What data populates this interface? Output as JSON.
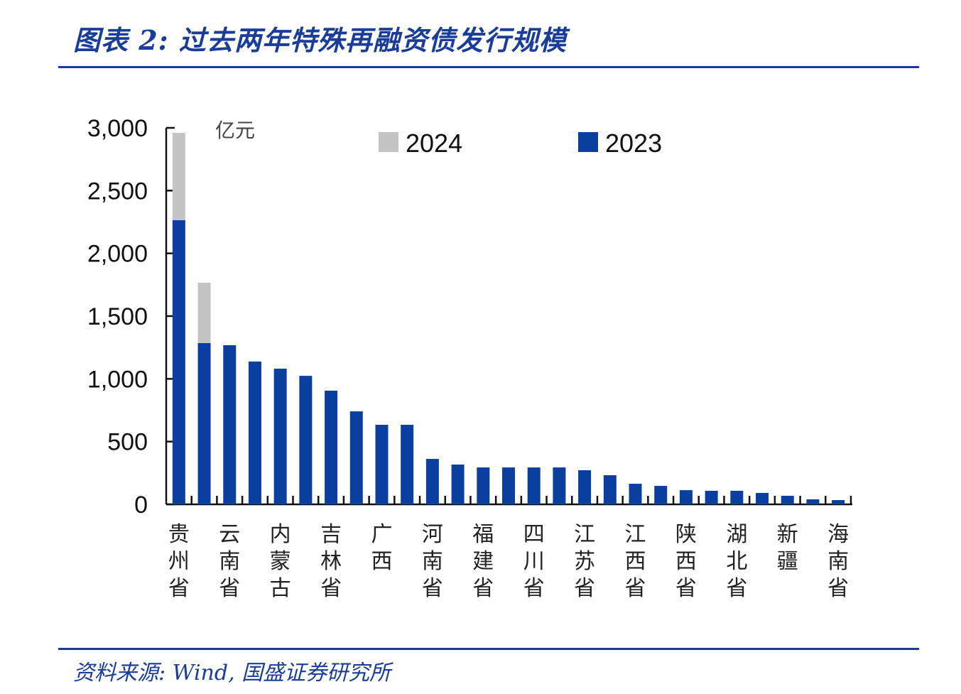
{
  "header": {
    "title": "图表 2:  过去两年特殊再融资债发行规模"
  },
  "footer": {
    "source": "资料来源: Wind, 国盛证券研究所"
  },
  "colors": {
    "brand": "#1a3d9a",
    "series_2023": "#0a3fa0",
    "series_2024": "#c4c4c4"
  },
  "chart_data": {
    "type": "bar",
    "stacked": true,
    "unit_label": "亿元",
    "ylim": [
      0,
      3000
    ],
    "yticks": [
      "0",
      "500",
      "1,000",
      "1,500",
      "2,000",
      "2,500",
      "3,000"
    ],
    "grid": false,
    "legend_position": "top",
    "categories": [
      "贵州省",
      "",
      "云南省",
      "",
      "内蒙古",
      "",
      "吉林省",
      "",
      "广西",
      "",
      "河南省",
      "",
      "福建省",
      "",
      "四川省",
      "",
      "江苏省",
      "",
      "江西省",
      "",
      "陕西省",
      "",
      "湖北省",
      "",
      "新疆",
      "",
      "海南省"
    ],
    "series": [
      {
        "name": "2023",
        "values": [
          2264,
          1285,
          1268,
          1138,
          1081,
          1024,
          906,
          741,
          634,
          634,
          362,
          317,
          294,
          294,
          294,
          294,
          272,
          232,
          164,
          147,
          113,
          108,
          108,
          91,
          68,
          40,
          34
        ]
      },
      {
        "name": "2024",
        "values": [
          696,
          481,
          0,
          0,
          0,
          0,
          0,
          0,
          0,
          0,
          0,
          0,
          0,
          0,
          0,
          0,
          0,
          0,
          0,
          0,
          0,
          0,
          0,
          0,
          0,
          0,
          0
        ]
      }
    ]
  }
}
